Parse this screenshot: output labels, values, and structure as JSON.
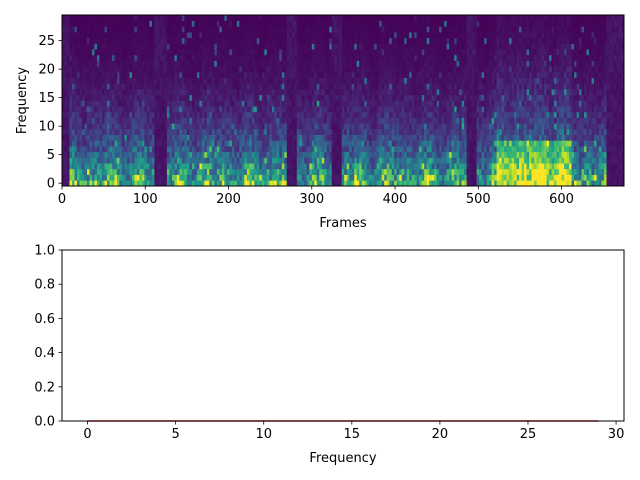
{
  "chart_data": [
    {
      "type": "heatmap",
      "title": "",
      "xlabel": "Frames",
      "ylabel": "Frequency",
      "xlim": [
        0,
        675
      ],
      "ylim": [
        -0.5,
        29.5
      ],
      "xticks": [
        0,
        100,
        200,
        300,
        400,
        500,
        600
      ],
      "yticks": [
        0,
        5,
        10,
        15,
        20,
        25
      ],
      "colormap": "viridis",
      "n_frames": 675,
      "n_bins": 30,
      "silent_frame_ranges": [
        [
          0,
          8
        ],
        [
          110,
          125
        ],
        [
          268,
          280
        ],
        [
          322,
          335
        ],
        [
          485,
          498
        ],
        [
          652,
          675
        ]
      ],
      "high_energy_frame_range": [
        520,
        610
      ],
      "grid": false,
      "legend": "none"
    },
    {
      "type": "line",
      "title": "",
      "xlabel": "Frequency",
      "ylabel": "",
      "xlim": [
        -1.45,
        30.45
      ],
      "ylim": [
        0,
        1
      ],
      "xticks": [
        0,
        5,
        10,
        15,
        20,
        25,
        30
      ],
      "yticks": [
        0.0,
        0.2,
        0.4,
        0.6,
        0.8,
        1.0
      ],
      "ytick_labels": [
        "0.0",
        "0.2",
        "0.4",
        "0.6",
        "0.8",
        "1.0"
      ],
      "series": [
        {
          "color": "#d62728",
          "x": [
            0,
            1,
            2,
            3,
            4,
            5,
            6,
            7,
            8,
            9,
            10,
            11,
            12,
            13,
            14,
            15,
            16,
            17,
            18,
            19,
            20,
            21,
            22,
            23,
            24,
            25,
            26,
            27,
            28,
            29
          ],
          "y": [
            0,
            0,
            0,
            0,
            0,
            0,
            0,
            0,
            0,
            0,
            0,
            0,
            0,
            0,
            0,
            0,
            0,
            0,
            0,
            0,
            0,
            0,
            0,
            0,
            0,
            0,
            0,
            0,
            0,
            0
          ]
        }
      ],
      "grid": false,
      "legend": "none"
    }
  ]
}
